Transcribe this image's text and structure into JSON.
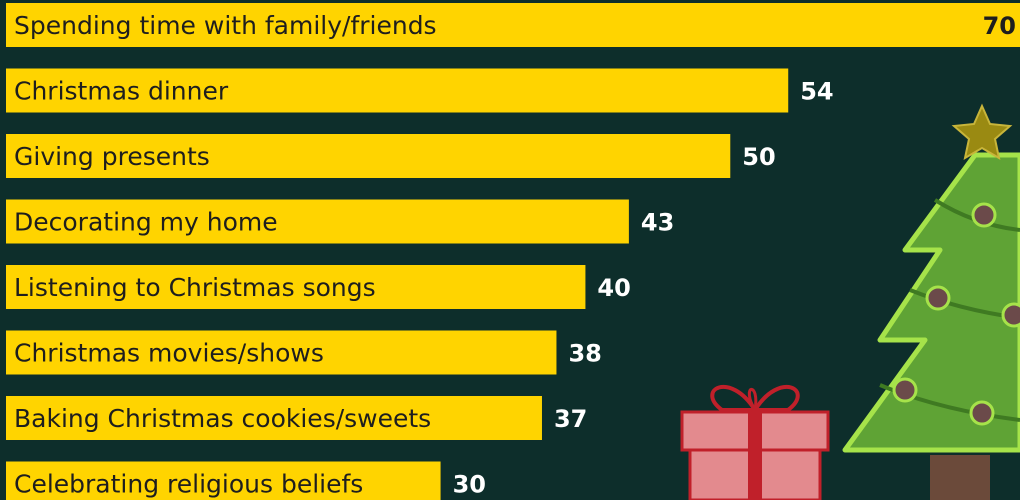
{
  "chart_data": {
    "type": "bar",
    "orientation": "horizontal",
    "categories": [
      "Spending time with family/friends",
      "Christmas dinner",
      "Giving presents",
      "Decorating my home",
      "Listening to Christmas songs",
      "Christmas movies/shows",
      "Baking Christmas cookies/sweets",
      "Celebrating religious beliefs"
    ],
    "values": [
      70,
      54,
      50,
      43,
      40,
      38,
      37,
      30
    ],
    "title": "",
    "xlabel": "",
    "ylabel": "",
    "xlim": [
      0,
      70
    ],
    "grid": false,
    "legend": "none"
  },
  "colors": {
    "background": "#0d2e2b",
    "bar": "#ffd400",
    "label_text": "#1e1e1e",
    "value_text": "#ffffff",
    "tree": "#5fa335",
    "tree_outline": "#a6e34a",
    "star": "#9a8a12",
    "ornament": "#6b4a4a",
    "gift": "#e38a8e",
    "ribbon": "#c0202a"
  },
  "decorations": [
    "christmas-tree-icon",
    "star-icon",
    "gift-box-icon"
  ]
}
